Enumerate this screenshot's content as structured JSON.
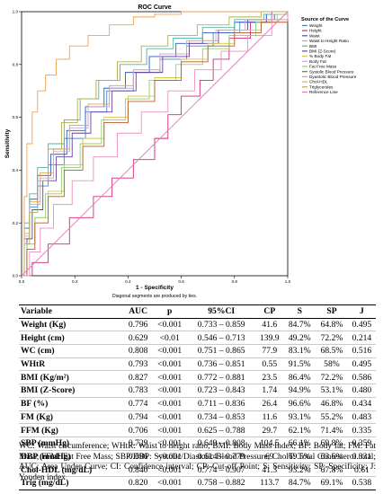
{
  "chart_data": {
    "type": "line",
    "title": "ROC Curve",
    "xlabel": "1 - Specificity",
    "ylabel": "Sensitivity",
    "xlim": [
      0,
      1
    ],
    "ylim": [
      0,
      1
    ],
    "x_ticks": [
      "0.0",
      "0.2",
      "0.4",
      "0.6",
      "0.8",
      "1.0"
    ],
    "y_ticks": [
      "0.0",
      "0.2",
      "0.4",
      "0.6",
      "0.8",
      "1.0"
    ],
    "note": "Diagonal segments are produced by ties.",
    "legend_title": "Source of the Curve",
    "legend_position": "right",
    "grid": false,
    "series": [
      {
        "name": "Weight",
        "color": "#3a8fd0",
        "points": [
          [
            0,
            0
          ],
          [
            0.01,
            0.14
          ],
          [
            0.03,
            0.26
          ],
          [
            0.06,
            0.34
          ],
          [
            0.1,
            0.42
          ],
          [
            0.16,
            0.52
          ],
          [
            0.24,
            0.62
          ],
          [
            0.32,
            0.7
          ],
          [
            0.42,
            0.77
          ],
          [
            0.52,
            0.82
          ],
          [
            0.62,
            0.87
          ],
          [
            0.72,
            0.92
          ],
          [
            0.82,
            0.96
          ],
          [
            0.92,
            0.99
          ],
          [
            1,
            1
          ]
        ]
      },
      {
        "name": "Height",
        "color": "#d02a7c",
        "points": [
          [
            0,
            0
          ],
          [
            0.04,
            0.05
          ],
          [
            0.1,
            0.12
          ],
          [
            0.18,
            0.22
          ],
          [
            0.27,
            0.3
          ],
          [
            0.34,
            0.37
          ],
          [
            0.42,
            0.44
          ],
          [
            0.5,
            0.52
          ],
          [
            0.55,
            0.61
          ],
          [
            0.6,
            0.68
          ],
          [
            0.67,
            0.74
          ],
          [
            0.72,
            0.82
          ],
          [
            0.78,
            0.9
          ],
          [
            0.86,
            0.96
          ],
          [
            0.94,
            1
          ],
          [
            1,
            1
          ]
        ]
      },
      {
        "name": "Waist",
        "color": "#2e5bbf",
        "points": [
          [
            0,
            0
          ],
          [
            0.01,
            0.18
          ],
          [
            0.03,
            0.29
          ],
          [
            0.06,
            0.38
          ],
          [
            0.11,
            0.46
          ],
          [
            0.17,
            0.55
          ],
          [
            0.24,
            0.64
          ],
          [
            0.31,
            0.71
          ],
          [
            0.39,
            0.77
          ],
          [
            0.48,
            0.83
          ],
          [
            0.58,
            0.88
          ],
          [
            0.68,
            0.92
          ],
          [
            0.8,
            0.96
          ],
          [
            0.92,
            0.99
          ],
          [
            1,
            1
          ]
        ]
      },
      {
        "name": "Waist to Height Ratio",
        "color": "#e8a03c",
        "points": [
          [
            0,
            0
          ],
          [
            0.01,
            0.16
          ],
          [
            0.03,
            0.28
          ],
          [
            0.07,
            0.39
          ],
          [
            0.12,
            0.48
          ],
          [
            0.18,
            0.57
          ],
          [
            0.25,
            0.65
          ],
          [
            0.33,
            0.72
          ],
          [
            0.42,
            0.78
          ],
          [
            0.52,
            0.84
          ],
          [
            0.63,
            0.89
          ],
          [
            0.74,
            0.93
          ],
          [
            0.85,
            0.97
          ],
          [
            0.94,
            0.99
          ],
          [
            1,
            1
          ]
        ]
      },
      {
        "name": "BMI",
        "color": "#4fb3a3",
        "points": [
          [
            0,
            0
          ],
          [
            0.01,
            0.2
          ],
          [
            0.03,
            0.31
          ],
          [
            0.06,
            0.41
          ],
          [
            0.1,
            0.5
          ],
          [
            0.16,
            0.59
          ],
          [
            0.22,
            0.67
          ],
          [
            0.29,
            0.74
          ],
          [
            0.37,
            0.8
          ],
          [
            0.47,
            0.86
          ],
          [
            0.57,
            0.9
          ],
          [
            0.68,
            0.94
          ],
          [
            0.8,
            0.97
          ],
          [
            0.91,
            0.99
          ],
          [
            1,
            1
          ]
        ]
      },
      {
        "name": "BMI (Z-Score)",
        "color": "#6a3fa0",
        "points": [
          [
            0,
            0
          ],
          [
            0.02,
            0.14
          ],
          [
            0.04,
            0.25
          ],
          [
            0.08,
            0.36
          ],
          [
            0.13,
            0.45
          ],
          [
            0.19,
            0.54
          ],
          [
            0.26,
            0.62
          ],
          [
            0.34,
            0.7
          ],
          [
            0.43,
            0.77
          ],
          [
            0.53,
            0.83
          ],
          [
            0.63,
            0.88
          ],
          [
            0.74,
            0.93
          ],
          [
            0.85,
            0.97
          ],
          [
            0.95,
            0.99
          ],
          [
            1,
            1
          ]
        ]
      },
      {
        "name": "% Body Fat",
        "color": "#d4c84a",
        "points": [
          [
            0,
            0
          ],
          [
            0.02,
            0.12
          ],
          [
            0.05,
            0.22
          ],
          [
            0.1,
            0.32
          ],
          [
            0.16,
            0.42
          ],
          [
            0.23,
            0.52
          ],
          [
            0.31,
            0.6
          ],
          [
            0.4,
            0.68
          ],
          [
            0.5,
            0.75
          ],
          [
            0.6,
            0.82
          ],
          [
            0.7,
            0.88
          ],
          [
            0.8,
            0.93
          ],
          [
            0.9,
            0.97
          ],
          [
            1,
            1
          ]
        ]
      },
      {
        "name": "Body Fat",
        "color": "#c9a7d8",
        "points": [
          [
            0,
            0
          ],
          [
            0.01,
            0.15
          ],
          [
            0.03,
            0.27
          ],
          [
            0.07,
            0.37
          ],
          [
            0.12,
            0.47
          ],
          [
            0.18,
            0.56
          ],
          [
            0.25,
            0.64
          ],
          [
            0.33,
            0.71
          ],
          [
            0.42,
            0.78
          ],
          [
            0.52,
            0.84
          ],
          [
            0.62,
            0.89
          ],
          [
            0.73,
            0.93
          ],
          [
            0.84,
            0.97
          ],
          [
            0.94,
            0.99
          ],
          [
            1,
            1
          ]
        ]
      },
      {
        "name": "Fat Free Mass",
        "color": "#8fd16a",
        "points": [
          [
            0,
            0
          ],
          [
            0.02,
            0.12
          ],
          [
            0.05,
            0.22
          ],
          [
            0.09,
            0.31
          ],
          [
            0.15,
            0.41
          ],
          [
            0.22,
            0.5
          ],
          [
            0.3,
            0.59
          ],
          [
            0.39,
            0.67
          ],
          [
            0.48,
            0.74
          ],
          [
            0.58,
            0.8
          ],
          [
            0.68,
            0.86
          ],
          [
            0.78,
            0.91
          ],
          [
            0.88,
            0.96
          ],
          [
            0.96,
            0.99
          ],
          [
            1,
            1
          ]
        ]
      },
      {
        "name": "Systolic Blood Pressure",
        "color": "#b85a2a",
        "points": [
          [
            0,
            0
          ],
          [
            0.02,
            0.1
          ],
          [
            0.05,
            0.2
          ],
          [
            0.1,
            0.3
          ],
          [
            0.16,
            0.4
          ],
          [
            0.23,
            0.49
          ],
          [
            0.31,
            0.58
          ],
          [
            0.4,
            0.66
          ],
          [
            0.5,
            0.74
          ],
          [
            0.6,
            0.81
          ],
          [
            0.7,
            0.87
          ],
          [
            0.8,
            0.92
          ],
          [
            0.9,
            0.96
          ],
          [
            1,
            1
          ]
        ]
      },
      {
        "name": "Dyastolic Blood Pressure",
        "color": "#ec8fc0",
        "points": [
          [
            0,
            0
          ],
          [
            0.03,
            0.09
          ],
          [
            0.07,
            0.18
          ],
          [
            0.12,
            0.27
          ],
          [
            0.19,
            0.36
          ],
          [
            0.27,
            0.45
          ],
          [
            0.36,
            0.54
          ],
          [
            0.45,
            0.62
          ],
          [
            0.55,
            0.7
          ],
          [
            0.65,
            0.78
          ],
          [
            0.75,
            0.85
          ],
          [
            0.85,
            0.91
          ],
          [
            0.94,
            0.97
          ],
          [
            1,
            1
          ]
        ]
      },
      {
        "name": "Chol-HDL",
        "color": "#f2a14b",
        "points": [
          [
            0,
            0
          ],
          [
            0.01,
            0.3
          ],
          [
            0.02,
            0.5
          ],
          [
            0.04,
            0.62
          ],
          [
            0.06,
            0.7
          ],
          [
            0.09,
            0.76
          ],
          [
            0.13,
            0.82
          ],
          [
            0.18,
            0.87
          ],
          [
            0.25,
            0.91
          ],
          [
            0.33,
            0.95
          ],
          [
            0.42,
            0.98
          ],
          [
            0.5,
            0.99
          ],
          [
            0.6,
            1
          ],
          [
            1,
            1
          ]
        ]
      },
      {
        "name": "Triglycerides",
        "color": "#b0b04a",
        "points": [
          [
            0,
            0
          ],
          [
            0.01,
            0.12
          ],
          [
            0.03,
            0.24
          ],
          [
            0.06,
            0.36
          ],
          [
            0.1,
            0.48
          ],
          [
            0.15,
            0.58
          ],
          [
            0.21,
            0.67
          ],
          [
            0.28,
            0.74
          ],
          [
            0.36,
            0.81
          ],
          [
            0.45,
            0.87
          ],
          [
            0.55,
            0.91
          ],
          [
            0.66,
            0.95
          ],
          [
            0.78,
            0.98
          ],
          [
            0.9,
            1
          ],
          [
            1,
            1
          ]
        ]
      },
      {
        "name": "Reference Line",
        "color": "#e27ab8",
        "points": [
          [
            0,
            0
          ],
          [
            1,
            1
          ]
        ]
      }
    ]
  },
  "table": {
    "columns": [
      "Variable",
      "AUC",
      "p",
      "95%CI",
      "CP",
      "S",
      "SP",
      "J"
    ],
    "rows": [
      [
        "Weight (Kg)",
        "0.796",
        "<0.001",
        "0.733 – 0.859",
        "41.6",
        "84.7%",
        "64.8%",
        "0.495"
      ],
      [
        "Height (cm)",
        "0.629",
        "<0.01",
        "0.546 – 0.713",
        "139.9",
        "49.2%",
        "72.2%",
        "0.214"
      ],
      [
        "WC (cm)",
        "0.808",
        "<0.001",
        "0.751 – 0.865",
        "77.9",
        "83.1%",
        "68.5%",
        "0.516"
      ],
      [
        "WHtR",
        "0.793",
        "<0.001",
        "0.736 – 0.851",
        "0.55",
        "91.5%",
        "58%",
        "0.495"
      ],
      [
        "BMI (Kg/m²)",
        "0.827",
        "<0.001",
        "0.772 – 0.881",
        "23.5",
        "86.4%",
        "72.2%",
        "0.586"
      ],
      [
        "BMI (Z-Score)",
        "0.783",
        "<0.001",
        "0.723 – 0.843",
        "1.74",
        "94.9%",
        "53.1%",
        "0.480"
      ],
      [
        "BF (%)",
        "0.774",
        "<0.001",
        "0.711 – 0.836",
        "26.4",
        "96.6%",
        "46.8%",
        "0.434"
      ],
      [
        "FM (Kg)",
        "0.794",
        "<0.001",
        "0.734 – 0.853",
        "11.6",
        "93.1%",
        "55.2%",
        "0.483"
      ],
      [
        "FFM (Kg)",
        "0.706",
        "<0.001",
        "0.625 – 0.788",
        "29.7",
        "62.1%",
        "71.4%",
        "0.335"
      ],
      [
        "SBP (mmHg)",
        "0.729",
        "<0.001",
        "0.649 – 0.808",
        "104.5",
        "66.1%",
        "69.8%",
        "0.359"
      ],
      [
        "DBP (mmHg)",
        "0.696",
        "<0.001",
        "0.614 – 0.779",
        "69",
        "69.5%",
        "63.6%",
        "0.331"
      ],
      [
        "Chol-HDL (mg/dL)",
        "0.840",
        "<0.001",
        "0.774 – 0.907",
        "41.3",
        "93.2%",
        "67.8%",
        "0.61"
      ],
      [
        "Trig (mg/dL)",
        "0.820",
        "<0.001",
        "0.758 – 0.882",
        "113.7",
        "84.7%",
        "69.1%",
        "0.538"
      ]
    ]
  },
  "footnote": "WC: Waist circumference; WHtR: Waist to height ratio; BMI: Body Mass Index; BF: Body fat; FM: Fat Mass; FFM: Fat Free Mass; SBP/DBP: Systolic/Diastolic Blood Pressure; CholT: Total Cholesterol total; AUC: Area Under Curve; CI: Confidence interval; CP: Cut-off Point; S: Sensitivity; SP: Specificity; J: Youden index"
}
